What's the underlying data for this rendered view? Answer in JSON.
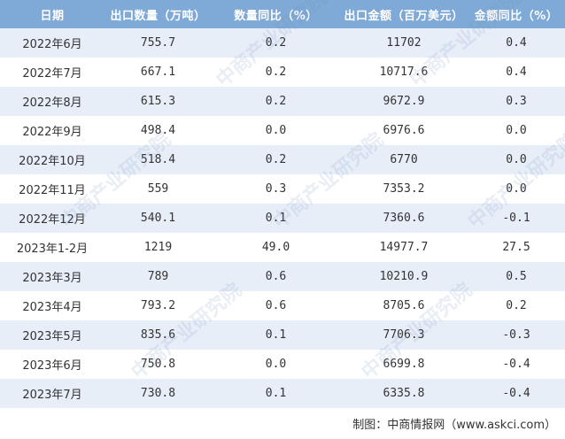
{
  "table": {
    "headers": [
      "日期",
      "出口数量（万吨）",
      "数量同比（%）",
      "出口金额（百万美元）",
      "金额同比（%）"
    ],
    "rows": [
      [
        "2022年6月",
        "755.7",
        "0.2",
        "11702",
        "0.4"
      ],
      [
        "2022年7月",
        "667.1",
        "0.2",
        "10717.6",
        "0.4"
      ],
      [
        "2022年8月",
        "615.3",
        "0.2",
        "9672.9",
        "0.3"
      ],
      [
        "2022年9月",
        "498.4",
        "0.0",
        "6976.6",
        "0.0"
      ],
      [
        "2022年10月",
        "518.4",
        "0.2",
        "6770",
        "0.0"
      ],
      [
        "2022年11月",
        "559",
        "0.3",
        "7353.2",
        "0.0"
      ],
      [
        "2022年12月",
        "540.1",
        "0.1",
        "7360.6",
        "-0.1"
      ],
      [
        "2023年1-2月",
        "1219",
        "49.0",
        "14977.7",
        "27.5"
      ],
      [
        "2023年3月",
        "789",
        "0.6",
        "10210.9",
        "0.5"
      ],
      [
        "2023年4月",
        "793.2",
        "0.6",
        "8705.6",
        "0.2"
      ],
      [
        "2023年5月",
        "835.6",
        "0.1",
        "7706.3",
        "-0.3"
      ],
      [
        "2023年6月",
        "750.8",
        "0.0",
        "6699.8",
        "-0.4"
      ],
      [
        "2023年7月",
        "730.8",
        "0.1",
        "6335.8",
        "-0.4"
      ]
    ]
  },
  "source": "制图：中商情报网（www.askci.com）",
  "watermark": "中商产业研究院",
  "colors": {
    "header_bg": "#7fa9d6",
    "stripe_bg": "#e7eef8"
  }
}
